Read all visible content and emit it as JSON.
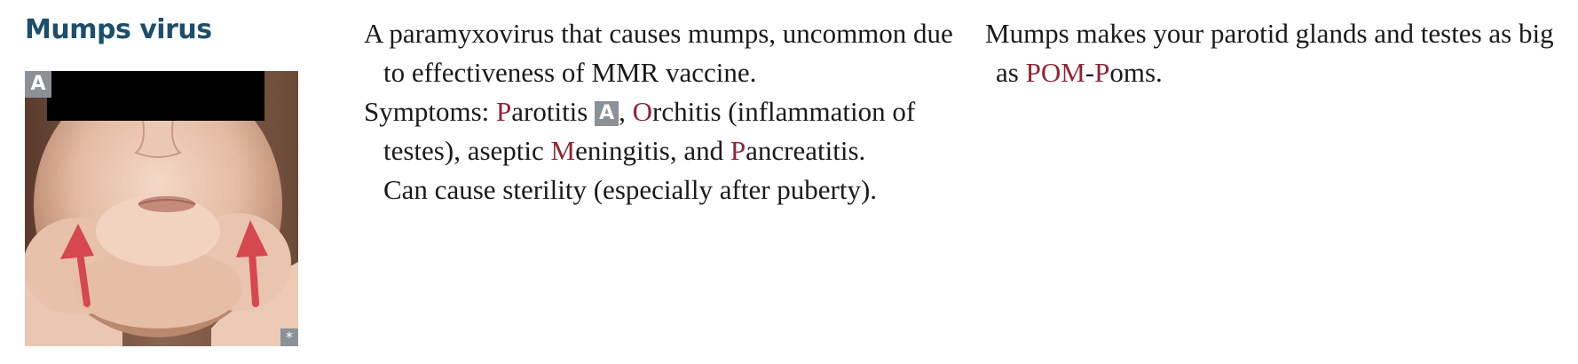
{
  "heading": "Mumps virus",
  "image": {
    "label": "A",
    "corner_mark": "*",
    "arrow_color": "#d6474f",
    "censor_bar_color": "#000000"
  },
  "description": {
    "p1": "A paramyxovirus that causes mumps, uncommon due to effectiveness of MMR vaccine.",
    "p2": {
      "prefix": "Symptoms: ",
      "parotitis_initial": "P",
      "parotitis_rest": "arotitis",
      "figure_ref": "A",
      "after_ref": ", ",
      "orchitis_initial": "O",
      "orchitis_rest": "rchitis (inflammation of testes), aseptic ",
      "meningitis_initial": "M",
      "meningitis_rest": "eningitis, and ",
      "pancreatitis_initial": "P",
      "pancreatitis_rest": "ancreatitis."
    },
    "p3": "Can cause sterility (especially after puberty)."
  },
  "mnemonic": {
    "before": "Mumps makes your parotid glands and testes as big as ",
    "pom": "POM",
    "dash": "-",
    "p": "P",
    "after": "oms."
  },
  "colors": {
    "heading": "#1d4e6b",
    "highlight": "#8f2432",
    "badge": "#8a9298"
  }
}
